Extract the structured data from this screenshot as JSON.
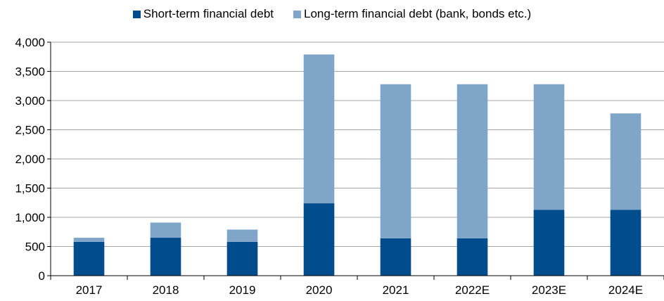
{
  "chart_data": {
    "type": "bar",
    "stacked": true,
    "categories": [
      "2017",
      "2018",
      "2019",
      "2020",
      "2021",
      "2022E",
      "2023E",
      "2024E"
    ],
    "series": [
      {
        "name": "Short-term financial debt",
        "color": "#004C8C",
        "values": [
          580,
          650,
          580,
          1240,
          640,
          640,
          1130,
          1130
        ]
      },
      {
        "name": "Long-term financial debt (bank, bonds etc.)",
        "color": "#7FA6C8",
        "values": [
          70,
          260,
          210,
          2550,
          2640,
          2640,
          2150,
          1650
        ]
      }
    ],
    "y_ticks": [
      "0",
      "500",
      "1,000",
      "1,500",
      "2,000",
      "2,500",
      "3,000",
      "3,500",
      "4,000"
    ],
    "ylim": [
      0,
      4000
    ],
    "grid": true,
    "legend_position": "top-center"
  }
}
